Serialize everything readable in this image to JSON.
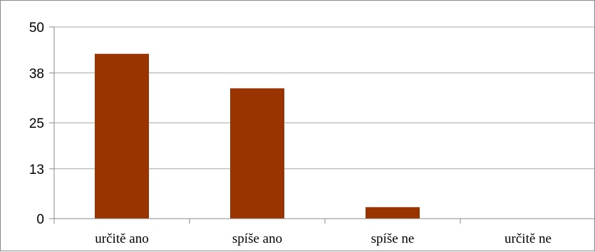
{
  "chart_data": {
    "type": "bar",
    "categories": [
      "určitě ano",
      "spíše ano",
      "spíše ne",
      "určitě ne"
    ],
    "values": [
      43,
      34,
      3,
      0
    ],
    "ylim": [
      0,
      50
    ],
    "yticks": [
      0,
      13,
      25,
      38,
      50
    ],
    "grid": true,
    "bar_color": "#993300",
    "grid_color": "#a6a6a6"
  }
}
